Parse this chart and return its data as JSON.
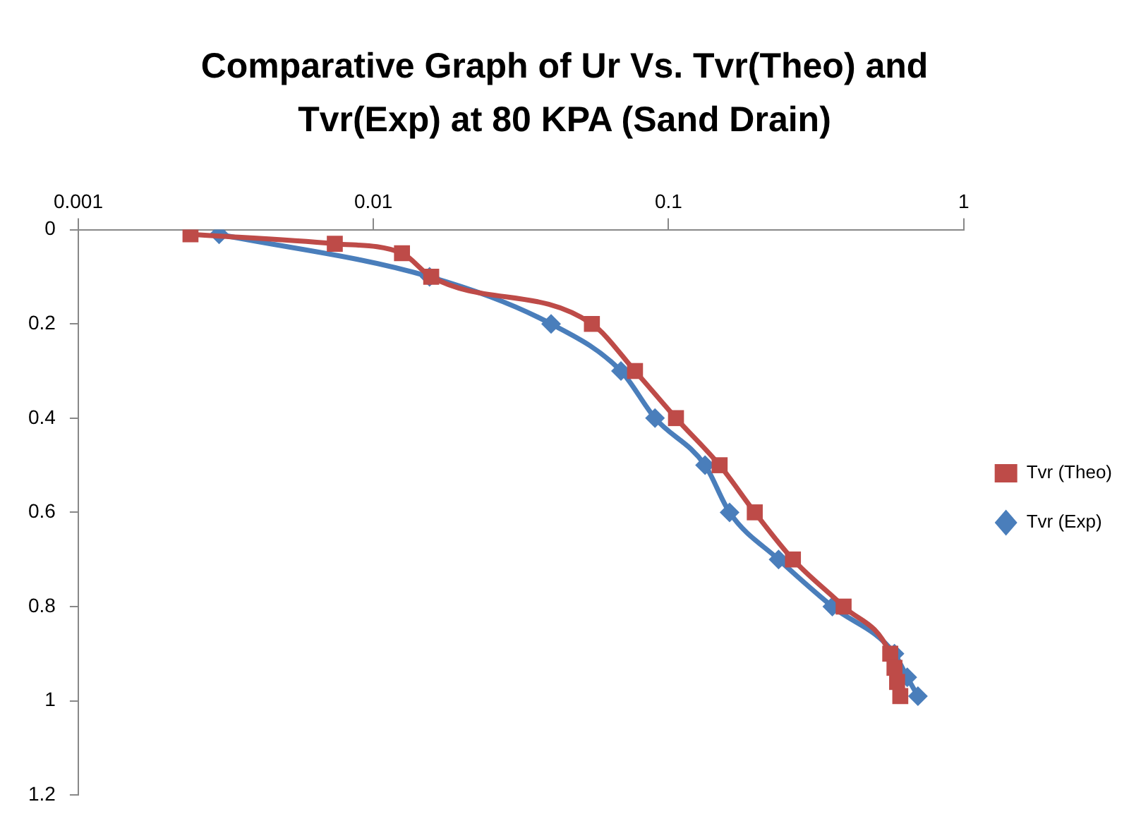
{
  "chart_data": {
    "type": "line",
    "title": "Comparative Graph of Ur Vs. Tvr(Theo) and Tvr(Exp) at 80 KPA (Sand Drain)",
    "log": "x",
    "grid": false,
    "legend": "right",
    "line_style": "solid",
    "xlim": [
      0.001,
      1
    ],
    "xticks": [
      0.001,
      0.01,
      0.1,
      1
    ],
    "ylim": [
      1.2,
      0
    ],
    "yticks": [
      0,
      0.2,
      0.4,
      0.6,
      0.8,
      1,
      1.2
    ],
    "series": [
      {
        "name": "Tvr (Exp)",
        "color": "#4a7ebb",
        "marker": "diamond",
        "x": [
          0.003,
          0.0155,
          0.04,
          0.069,
          0.09,
          0.133,
          0.161,
          0.236,
          0.359,
          0.583,
          0.644,
          0.7
        ],
        "values": [
          0.01,
          0.1,
          0.2,
          0.3,
          0.4,
          0.5,
          0.6,
          0.7,
          0.8,
          0.9,
          0.95,
          0.99
        ]
      },
      {
        "name": "Tvr (Theo)",
        "color": "#be4b48",
        "marker": "square",
        "x": [
          0.0024,
          0.0074,
          0.0125,
          0.0157,
          0.055,
          0.077,
          0.106,
          0.149,
          0.196,
          0.264,
          0.392,
          0.564,
          0.583,
          0.595,
          0.61
        ],
        "values": [
          0.01,
          0.03,
          0.05,
          0.1,
          0.2,
          0.3,
          0.4,
          0.5,
          0.6,
          0.7,
          0.8,
          0.9,
          0.93,
          0.96,
          0.99
        ]
      }
    ]
  }
}
